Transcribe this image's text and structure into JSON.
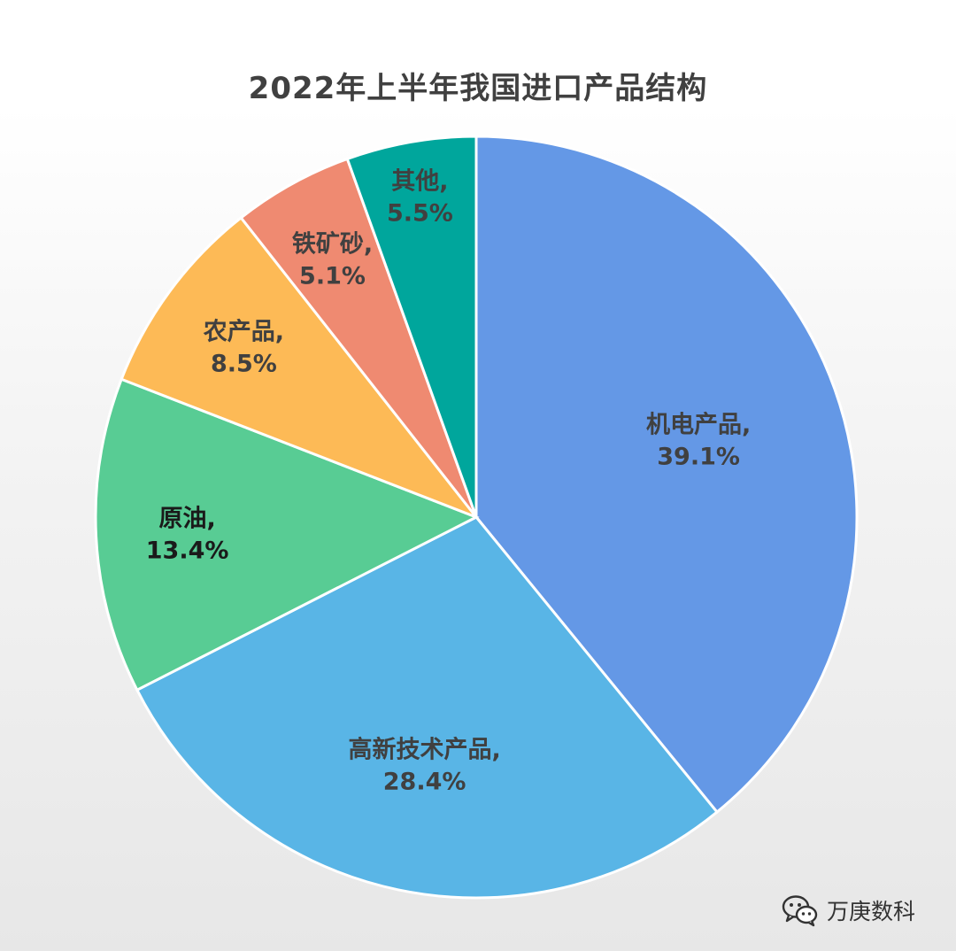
{
  "chart_data": {
    "type": "pie",
    "title": "2022年上半年我国进口产品结构",
    "slices": [
      {
        "name": "机电产品",
        "value": 39.1,
        "label": "39.1%",
        "color": "#6498E6"
      },
      {
        "name": "高新技术产品",
        "value": 28.4,
        "label": "28.4%",
        "color": "#59B5E6"
      },
      {
        "name": "原油",
        "value": 13.4,
        "label": "13.4%",
        "color": "#58CC94"
      },
      {
        "name": "农产品",
        "value": 8.5,
        "label": "8.5%",
        "color": "#FDBA56"
      },
      {
        "name": "铁矿砂",
        "value": 5.1,
        "label": "5.1%",
        "color": "#EF8A71"
      },
      {
        "name": "其他",
        "value": 5.5,
        "label": "5.5%",
        "color": "#00A69C"
      }
    ],
    "start_angle": "12 o'clock",
    "direction": "clockwise",
    "label_separator": ","
  },
  "watermark": {
    "icon": "wechat-icon",
    "text": "万庚数科"
  }
}
